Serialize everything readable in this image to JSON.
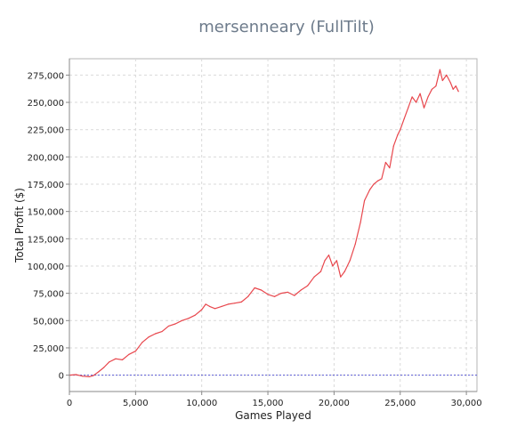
{
  "chart_data": {
    "type": "line",
    "title": "mersenneary (FullTilt)",
    "xlabel": "Games Played",
    "ylabel": "Total Profit ($)",
    "xlim": [
      0,
      30800
    ],
    "ylim": [
      -15000,
      290000
    ],
    "grid": true,
    "xticks": [
      0,
      5000,
      10000,
      15000,
      20000,
      25000,
      30000
    ],
    "xtick_labels": [
      "0",
      "5,000",
      "10,000",
      "15,000",
      "20,000",
      "25,000",
      "30,000"
    ],
    "yticks": [
      0,
      25000,
      50000,
      75000,
      100000,
      125000,
      150000,
      175000,
      200000,
      225000,
      250000,
      275000
    ],
    "ytick_labels": [
      "0",
      "25,000",
      "50,000",
      "75,000",
      "100,000",
      "125,000",
      "150,000",
      "175,000",
      "200,000",
      "225,000",
      "250,000",
      "275,000"
    ],
    "zero_line": 0,
    "colors": {
      "series": "#e8474d",
      "zero_line": "#5b5bd6",
      "grid": "#d9d9d9"
    },
    "series": [
      {
        "values": {
          "x": [
            0,
            500,
            1000,
            1500,
            1800,
            2200,
            2600,
            3000,
            3500,
            4000,
            4500,
            5000,
            5500,
            6000,
            6500,
            7000,
            7500,
            8000,
            8500,
            9000,
            9500,
            10000,
            10300,
            10600,
            11000,
            11500,
            12000,
            12500,
            13000,
            13500,
            14000,
            14500,
            15000,
            15500,
            16000,
            16500,
            17000,
            17500,
            18000,
            18500,
            19000,
            19300,
            19600,
            19900,
            20200,
            20500,
            20800,
            21200,
            21600,
            22000,
            22300,
            22700,
            23000,
            23300,
            23600,
            23900,
            24200,
            24500,
            24800,
            25000,
            25300,
            25600,
            25900,
            26200,
            26500,
            26800,
            27100,
            27400,
            27700,
            28000,
            28200,
            28500,
            28800,
            29000,
            29200,
            29400
          ],
          "y": [
            0,
            500,
            -1000,
            -1500,
            -500,
            3000,
            7000,
            12000,
            15000,
            14000,
            19000,
            22000,
            30000,
            35000,
            38000,
            40000,
            45000,
            47000,
            50000,
            52000,
            55000,
            60000,
            65000,
            63000,
            61000,
            63000,
            65000,
            66000,
            67000,
            72000,
            80000,
            78000,
            74000,
            72000,
            75000,
            76000,
            73000,
            78000,
            82000,
            90000,
            95000,
            105000,
            110000,
            100000,
            105000,
            90000,
            95000,
            105000,
            120000,
            140000,
            160000,
            170000,
            175000,
            178000,
            180000,
            195000,
            190000,
            210000,
            220000,
            225000,
            235000,
            245000,
            255000,
            250000,
            258000,
            245000,
            255000,
            262000,
            265000,
            280000,
            270000,
            275000,
            268000,
            262000,
            265000,
            260000
          ]
        }
      }
    ]
  }
}
